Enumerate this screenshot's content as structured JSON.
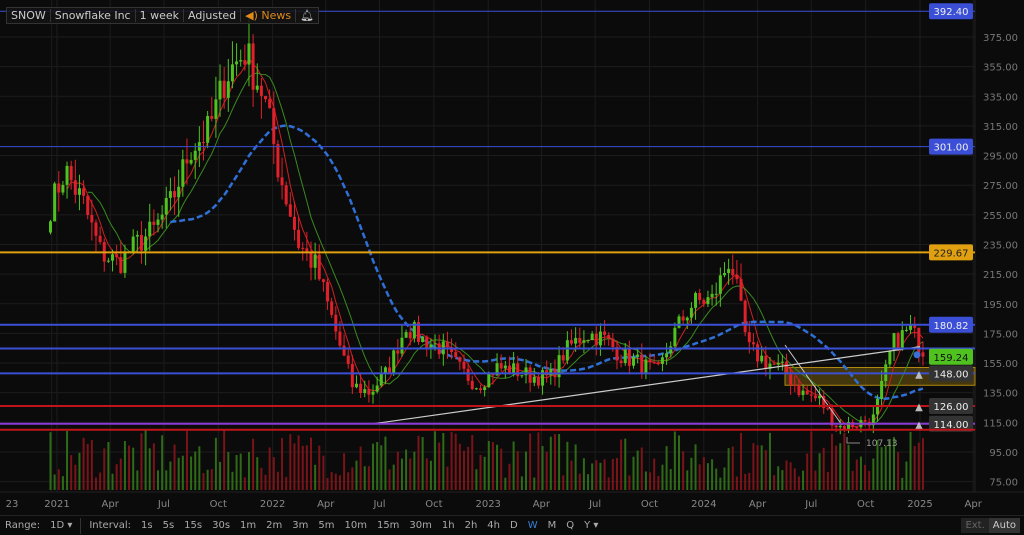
{
  "header": {
    "symbol": "SNOW",
    "name": "Snowflake Inc",
    "period": "1 week",
    "adjustment": "Adjusted",
    "news": "News"
  },
  "colors": {
    "up": "#4fc21f",
    "down": "#e0202a",
    "blue_level": "#3b4fd6",
    "orange_level": "#e0a010",
    "red_level": "#c0141a",
    "purple_level": "#8a3ad6",
    "zone": "#8a6a10",
    "ma_fast": "#d02020",
    "ma_mid": "#3a8a20",
    "ma_slow": "#2f6fd6"
  },
  "chart_data": {
    "type": "candlestick",
    "interval": "weekly",
    "ylim": [
      70,
      400
    ],
    "y_ticks": [
      375,
      355,
      335,
      315,
      295,
      275,
      255,
      235,
      215,
      195,
      175,
      155,
      135,
      115,
      95,
      75
    ],
    "x_ticks": [
      [
        "23",
        "2020-12-23"
      ],
      [
        "2021",
        "2021-01-01"
      ],
      [
        "Apr",
        "2021-04-01"
      ],
      [
        "Jul",
        "2021-07-01"
      ],
      [
        "Oct",
        "2021-10-01"
      ],
      [
        "2022",
        "2022-01-01"
      ],
      [
        "Apr",
        "2022-04-01"
      ],
      [
        "Jul",
        "2022-07-01"
      ],
      [
        "Oct",
        "2022-10-01"
      ],
      [
        "2023",
        "2023-01-01"
      ],
      [
        "Apr",
        "2023-04-01"
      ],
      [
        "Jul",
        "2023-07-01"
      ],
      [
        "Oct",
        "2023-10-01"
      ],
      [
        "2024",
        "2024-01-01"
      ],
      [
        "Apr",
        "2024-04-01"
      ],
      [
        "Jul",
        "2024-07-01"
      ],
      [
        "Oct",
        "2024-10-01"
      ],
      [
        "2025",
        "2025-01-01"
      ],
      [
        "Apr",
        "2025-04-01"
      ]
    ],
    "approx_monthly_close": [
      [
        "2020-12",
        255
      ],
      [
        "2021-01",
        285
      ],
      [
        "2021-02",
        262
      ],
      [
        "2021-03",
        230
      ],
      [
        "2021-04",
        222
      ],
      [
        "2021-05",
        235
      ],
      [
        "2021-06",
        245
      ],
      [
        "2021-07",
        265
      ],
      [
        "2021-08",
        300
      ],
      [
        "2021-09",
        312
      ],
      [
        "2021-10",
        350
      ],
      [
        "2021-11",
        365
      ],
      [
        "2021-12",
        338
      ],
      [
        "2022-01",
        280
      ],
      [
        "2022-02",
        235
      ],
      [
        "2022-03",
        220
      ],
      [
        "2022-04",
        180
      ],
      [
        "2022-05",
        140
      ],
      [
        "2022-06",
        135
      ],
      [
        "2022-07",
        150
      ],
      [
        "2022-08",
        180
      ],
      [
        "2022-09",
        170
      ],
      [
        "2022-10",
        165
      ],
      [
        "2022-11",
        150
      ],
      [
        "2022-12",
        140
      ],
      [
        "2023-01",
        152
      ],
      [
        "2023-02",
        150
      ],
      [
        "2023-03",
        146
      ],
      [
        "2023-04",
        145
      ],
      [
        "2023-05",
        165
      ],
      [
        "2023-06",
        175
      ],
      [
        "2023-07",
        172
      ],
      [
        "2023-08",
        160
      ],
      [
        "2023-09",
        155
      ],
      [
        "2023-10",
        148
      ],
      [
        "2023-11",
        178
      ],
      [
        "2023-12",
        196
      ],
      [
        "2024-01",
        198
      ],
      [
        "2024-02",
        226
      ],
      [
        "2024-03",
        165
      ],
      [
        "2024-04",
        156
      ],
      [
        "2024-05",
        150
      ],
      [
        "2024-06",
        135
      ],
      [
        "2024-07",
        130
      ],
      [
        "2024-08",
        112
      ],
      [
        "2024-09",
        114
      ],
      [
        "2024-10",
        118
      ],
      [
        "2024-11",
        168
      ],
      [
        "2024-12",
        178
      ],
      [
        "2025-01",
        159
      ]
    ],
    "levels": [
      {
        "price": 392.4,
        "color": "blue",
        "label": "392.40"
      },
      {
        "price": 301.0,
        "color": "blue",
        "label": "301.00"
      },
      {
        "price": 229.67,
        "color": "orange",
        "label": "229.67"
      },
      {
        "price": 180.82,
        "color": "blue",
        "label": "180.82"
      },
      {
        "price": 164.84,
        "color": "blue",
        "label": ""
      },
      {
        "price": 148.0,
        "color": "blue",
        "label": "148.00",
        "alert": true
      },
      {
        "price": 126.0,
        "color": "red",
        "label": "126.00",
        "alert": true
      },
      {
        "price": 114.0,
        "color": "purple",
        "label": "114.00",
        "alert": true
      },
      {
        "price": 110.0,
        "color": "red",
        "label": ""
      }
    ],
    "zone": [
      140,
      152
    ],
    "last_price": "159.24",
    "low_annotation": "107.13",
    "trendline": [
      [
        "2022-06-20",
        114
      ],
      [
        "2025-01-01",
        166
      ]
    ]
  },
  "toolbar": {
    "range_label": "Range:",
    "range_value": "1D",
    "interval_label": "Interval:",
    "intervals": [
      "1s",
      "5s",
      "15s",
      "30s",
      "1m",
      "2m",
      "3m",
      "5m",
      "10m",
      "15m",
      "30m",
      "1h",
      "2h",
      "4h",
      "D",
      "W",
      "M",
      "Q",
      "Y"
    ],
    "selected": "W",
    "ext": "Ext.",
    "auto": "Auto"
  }
}
